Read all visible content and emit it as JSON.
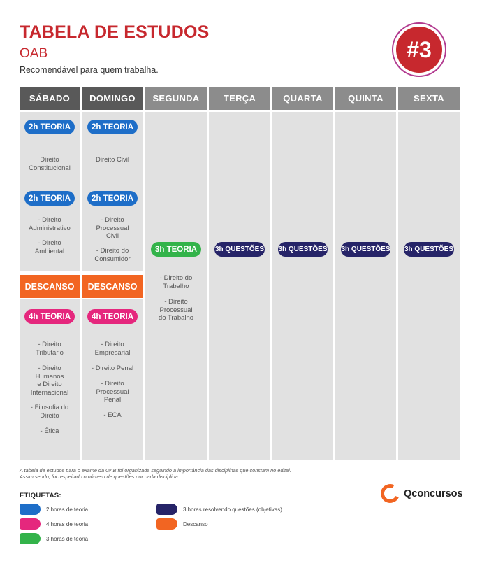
{
  "header": {
    "title": "TABELA DE ESTUDOS",
    "subtitle": "OAB",
    "description": "Recomendável para quem trabalha.",
    "badge": "#3"
  },
  "days": [
    "SÁBADO",
    "DOMINGO",
    "SEGUNDA",
    "TERÇA",
    "QUARTA",
    "QUINTA",
    "SEXTA"
  ],
  "saturday": {
    "block1": {
      "label": "2h TEORIA",
      "subjects": [
        "Direito\nConstitucional"
      ]
    },
    "block2": {
      "label": "2h TEORIA",
      "subjects": [
        "- Direito\nAdministrativo",
        "- Direito\nAmbiental"
      ]
    },
    "rest": "DESCANSO",
    "block3": {
      "label": "4h TEORIA",
      "subjects": [
        "- Direito\nTributário",
        "- Direito\nHumanos\ne Direito\nInternacional",
        "- Filosofia do\nDireito",
        "- Ética"
      ]
    }
  },
  "sunday": {
    "block1": {
      "label": "2h TEORIA",
      "subjects": [
        "Direito Civil"
      ]
    },
    "block2": {
      "label": "2h TEORIA",
      "subjects": [
        "- Direito\nProcessual\nCivil",
        "- Direito do\nConsumidor"
      ]
    },
    "rest": "DESCANSO",
    "block3": {
      "label": "4h TEORIA",
      "subjects": [
        "- Direito\nEmpresarial",
        "- Direito Penal",
        "- Direito\nProcessual\nPenal",
        "- ECA"
      ]
    }
  },
  "monday": {
    "label": "3h TEORIA",
    "subjects": [
      "- Direito do\nTrabalho",
      "- Direito\nProcessual\ndo Trabalho"
    ]
  },
  "weekdays_label": "3h QUESTÕES",
  "footnote": {
    "line1": "A tabela de estudos para o exame da OAB foi organizada seguindo a importância das disciplinas que constam no edital.",
    "line2": "Assim sendo, foi respeitado o número de questões por cada disciplina."
  },
  "brand": "Qconcursos",
  "legend": {
    "title": "ETIQUETAS:",
    "items": [
      {
        "label": "2 horas de teoria",
        "color": "#1e6ec8"
      },
      {
        "label": "4 horas de teoria",
        "color": "#e5277d"
      },
      {
        "label": "3 horas de teoria",
        "color": "#33b34a"
      },
      {
        "label": "3 horas resolvendo questões (objetivas)",
        "color": "#262468"
      },
      {
        "label": "Descanso",
        "color": "#f26522"
      }
    ]
  }
}
